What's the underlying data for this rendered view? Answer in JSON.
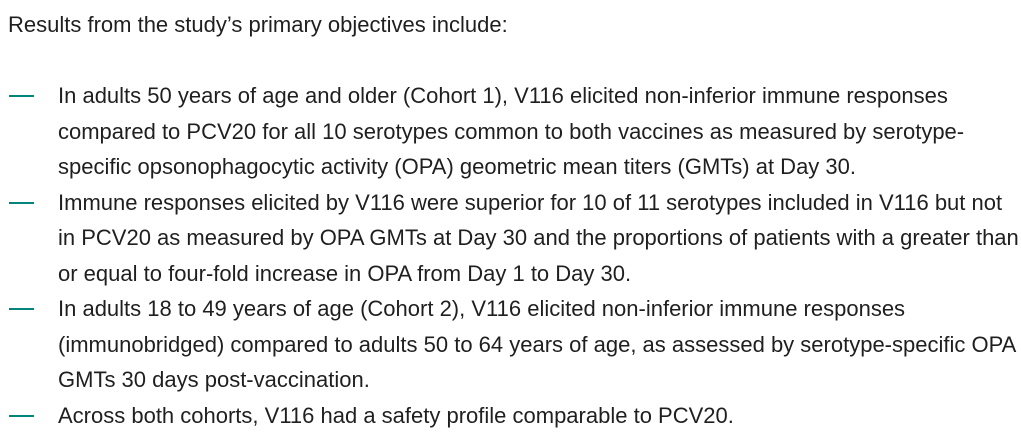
{
  "intro": "Results from the study’s primary objectives include:",
  "accent_color": "#00857c",
  "bullets": [
    "In adults 50 years of age and older (Cohort 1), V116 elicited non-inferior immune responses compared to PCV20 for all 10 serotypes common to both vaccines as measured by serotype-specific opsonophagocytic activity (OPA) geometric mean titers (GMTs) at Day 30.",
    "Immune responses elicited by V116 were superior for 10 of 11 serotypes included in V116 but not in PCV20 as measured by OPA GMTs at Day 30 and the proportions of patients with a greater than or equal to four-fold increase in OPA from Day 1 to Day 30.",
    "In adults 18 to 49 years of age (Cohort 2), V116 elicited non-inferior immune responses (immunobridged) compared to adults 50 to 64 years of age, as assessed by serotype-specific OPA GMTs 30 days post-vaccination.",
    "Across both cohorts, V116 had a safety profile comparable to PCV20."
  ]
}
